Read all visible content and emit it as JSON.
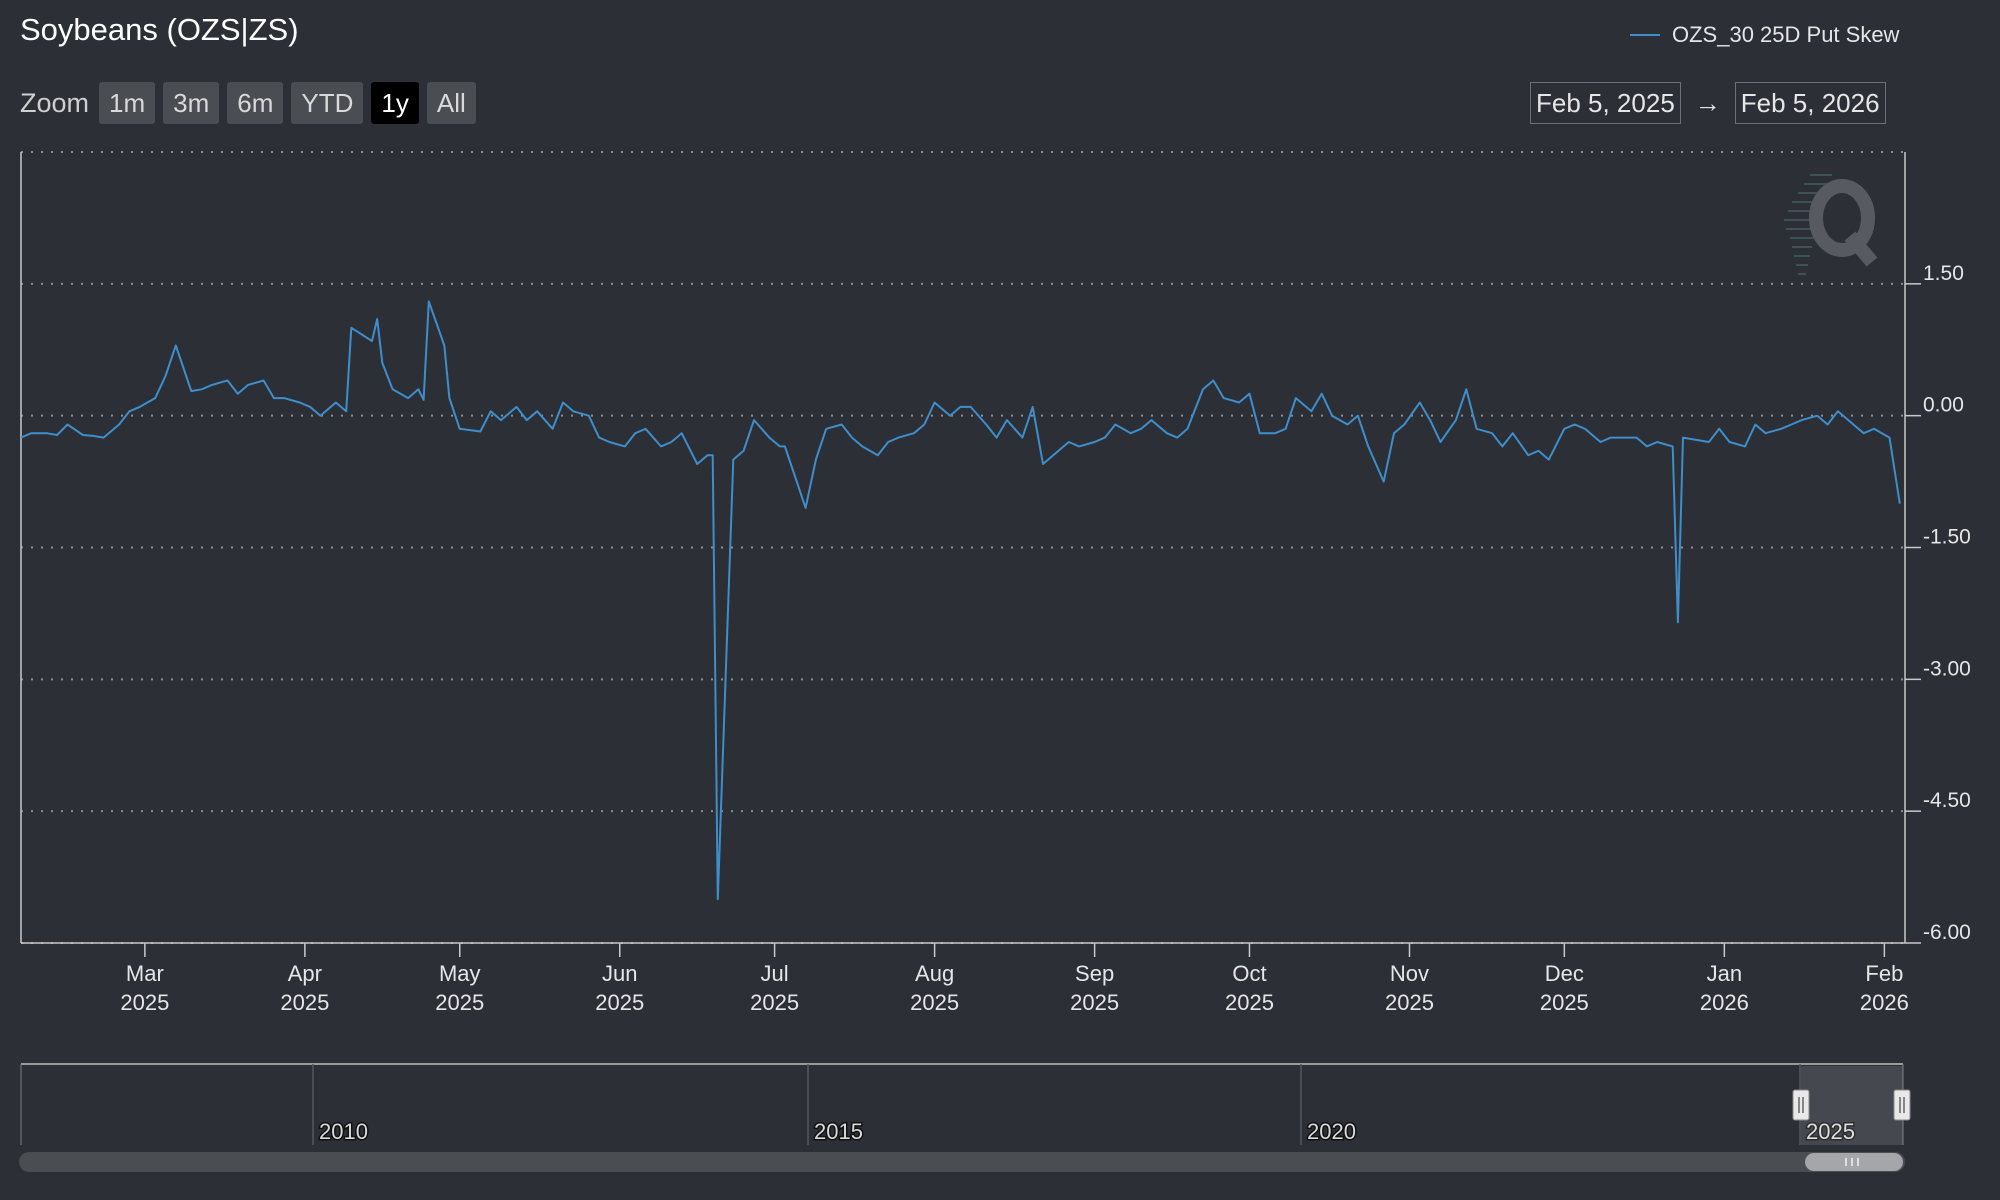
{
  "title": "Soybeans (OZS|ZS)",
  "legend_label": "OZS_30 25D Put Skew",
  "zoom": {
    "label": "Zoom",
    "buttons": [
      "1m",
      "3m",
      "6m",
      "YTD",
      "1y",
      "All"
    ],
    "active": "1y"
  },
  "range": {
    "from": "Feb 5, 2025",
    "arrow": "→",
    "to": "Feb 5, 2026"
  },
  "colors": {
    "background": "#2c2f36",
    "series": "#3e8ecb",
    "grid": "#8a8d92"
  },
  "navigator_labels": [
    "2010",
    "2015",
    "2020",
    "2025"
  ],
  "chart_data": {
    "type": "line",
    "x_range": [
      "2025-02-05",
      "2026-02-05"
    ],
    "ylim": [
      -6.0,
      3.0
    ],
    "grid": true,
    "legend_position": "top-right",
    "y_axis_position": "right",
    "yticks": [
      1.5,
      0.0,
      -1.5,
      -3.0,
      -4.5,
      -6.0
    ],
    "ytick_labels": [
      "1.50",
      "0.00",
      "-1.50",
      "-3.00",
      "-4.50",
      "-6.00"
    ],
    "xticks": [
      {
        "date": "2025-03-01",
        "label": "Mar",
        "year": "2025"
      },
      {
        "date": "2025-04-01",
        "label": "Apr",
        "year": "2025"
      },
      {
        "date": "2025-05-01",
        "label": "May",
        "year": "2025"
      },
      {
        "date": "2025-06-01",
        "label": "Jun",
        "year": "2025"
      },
      {
        "date": "2025-07-01",
        "label": "Jul",
        "year": "2025"
      },
      {
        "date": "2025-08-01",
        "label": "Aug",
        "year": "2025"
      },
      {
        "date": "2025-09-01",
        "label": "Sep",
        "year": "2025"
      },
      {
        "date": "2025-10-01",
        "label": "Oct",
        "year": "2025"
      },
      {
        "date": "2025-11-01",
        "label": "Nov",
        "year": "2025"
      },
      {
        "date": "2025-12-01",
        "label": "Dec",
        "year": "2025"
      },
      {
        "date": "2026-01-01",
        "label": "Jan",
        "year": "2026"
      },
      {
        "date": "2026-02-01",
        "label": "Feb",
        "year": "2026"
      }
    ],
    "series": [
      {
        "name": "OZS_30 25D Put Skew",
        "points": [
          [
            "2025-02-05",
            -0.25
          ],
          [
            "2025-02-07",
            -0.2
          ],
          [
            "2025-02-10",
            -0.2
          ],
          [
            "2025-02-12",
            -0.22
          ],
          [
            "2025-02-14",
            -0.1
          ],
          [
            "2025-02-17",
            -0.22
          ],
          [
            "2025-02-19",
            -0.23
          ],
          [
            "2025-02-21",
            -0.25
          ],
          [
            "2025-02-24",
            -0.1
          ],
          [
            "2025-02-26",
            0.05
          ],
          [
            "2025-02-28",
            0.1
          ],
          [
            "2025-03-03",
            0.2
          ],
          [
            "2025-03-05",
            0.45
          ],
          [
            "2025-03-07",
            0.8
          ],
          [
            "2025-03-10",
            0.28
          ],
          [
            "2025-03-12",
            0.3
          ],
          [
            "2025-03-14",
            0.35
          ],
          [
            "2025-03-17",
            0.4
          ],
          [
            "2025-03-19",
            0.25
          ],
          [
            "2025-03-21",
            0.35
          ],
          [
            "2025-03-24",
            0.4
          ],
          [
            "2025-03-26",
            0.2
          ],
          [
            "2025-03-28",
            0.2
          ],
          [
            "2025-03-31",
            0.15
          ],
          [
            "2025-04-02",
            0.1
          ],
          [
            "2025-04-04",
            0.0
          ],
          [
            "2025-04-07",
            0.15
          ],
          [
            "2025-04-09",
            0.05
          ],
          [
            "2025-04-10",
            1.0
          ],
          [
            "2025-04-14",
            0.85
          ],
          [
            "2025-04-15",
            1.1
          ],
          [
            "2025-04-16",
            0.6
          ],
          [
            "2025-04-18",
            0.3
          ],
          [
            "2025-04-21",
            0.2
          ],
          [
            "2025-04-23",
            0.3
          ],
          [
            "2025-04-24",
            0.18
          ],
          [
            "2025-04-25",
            1.3
          ],
          [
            "2025-04-28",
            0.8
          ],
          [
            "2025-04-29",
            0.2
          ],
          [
            "2025-05-01",
            -0.15
          ],
          [
            "2025-05-05",
            -0.18
          ],
          [
            "2025-05-07",
            0.05
          ],
          [
            "2025-05-09",
            -0.05
          ],
          [
            "2025-05-12",
            0.1
          ],
          [
            "2025-05-14",
            -0.05
          ],
          [
            "2025-05-16",
            0.05
          ],
          [
            "2025-05-19",
            -0.15
          ],
          [
            "2025-05-21",
            0.15
          ],
          [
            "2025-05-23",
            0.05
          ],
          [
            "2025-05-26",
            0.0
          ],
          [
            "2025-05-28",
            -0.25
          ],
          [
            "2025-05-30",
            -0.3
          ],
          [
            "2025-06-02",
            -0.35
          ],
          [
            "2025-06-04",
            -0.2
          ],
          [
            "2025-06-06",
            -0.15
          ],
          [
            "2025-06-09",
            -0.35
          ],
          [
            "2025-06-11",
            -0.3
          ],
          [
            "2025-06-13",
            -0.2
          ],
          [
            "2025-06-16",
            -0.55
          ],
          [
            "2025-06-18",
            -0.45
          ],
          [
            "2025-06-19",
            -0.45
          ],
          [
            "2025-06-20",
            -5.5
          ],
          [
            "2025-06-23",
            -0.5
          ],
          [
            "2025-06-25",
            -0.4
          ],
          [
            "2025-06-27",
            -0.05
          ],
          [
            "2025-06-30",
            -0.25
          ],
          [
            "2025-07-02",
            -0.35
          ],
          [
            "2025-07-03",
            -0.35
          ],
          [
            "2025-07-07",
            -1.05
          ],
          [
            "2025-07-09",
            -0.5
          ],
          [
            "2025-07-11",
            -0.15
          ],
          [
            "2025-07-14",
            -0.1
          ],
          [
            "2025-07-16",
            -0.25
          ],
          [
            "2025-07-18",
            -0.35
          ],
          [
            "2025-07-21",
            -0.45
          ],
          [
            "2025-07-23",
            -0.3
          ],
          [
            "2025-07-25",
            -0.25
          ],
          [
            "2025-07-28",
            -0.2
          ],
          [
            "2025-07-30",
            -0.1
          ],
          [
            "2025-08-01",
            0.15
          ],
          [
            "2025-08-04",
            0.0
          ],
          [
            "2025-08-06",
            0.1
          ],
          [
            "2025-08-08",
            0.1
          ],
          [
            "2025-08-11",
            -0.1
          ],
          [
            "2025-08-13",
            -0.25
          ],
          [
            "2025-08-15",
            -0.05
          ],
          [
            "2025-08-18",
            -0.25
          ],
          [
            "2025-08-20",
            0.1
          ],
          [
            "2025-08-22",
            -0.55
          ],
          [
            "2025-08-25",
            -0.4
          ],
          [
            "2025-08-27",
            -0.3
          ],
          [
            "2025-08-29",
            -0.35
          ],
          [
            "2025-09-01",
            -0.3
          ],
          [
            "2025-09-03",
            -0.25
          ],
          [
            "2025-09-05",
            -0.1
          ],
          [
            "2025-09-08",
            -0.2
          ],
          [
            "2025-09-10",
            -0.15
          ],
          [
            "2025-09-12",
            -0.05
          ],
          [
            "2025-09-15",
            -0.2
          ],
          [
            "2025-09-17",
            -0.25
          ],
          [
            "2025-09-19",
            -0.15
          ],
          [
            "2025-09-22",
            0.3
          ],
          [
            "2025-09-24",
            0.4
          ],
          [
            "2025-09-26",
            0.2
          ],
          [
            "2025-09-29",
            0.15
          ],
          [
            "2025-10-01",
            0.25
          ],
          [
            "2025-10-03",
            -0.2
          ],
          [
            "2025-10-06",
            -0.2
          ],
          [
            "2025-10-08",
            -0.15
          ],
          [
            "2025-10-10",
            0.2
          ],
          [
            "2025-10-13",
            0.05
          ],
          [
            "2025-10-15",
            0.25
          ],
          [
            "2025-10-17",
            0.0
          ],
          [
            "2025-10-20",
            -0.1
          ],
          [
            "2025-10-22",
            0.0
          ],
          [
            "2025-10-24",
            -0.35
          ],
          [
            "2025-10-27",
            -0.75
          ],
          [
            "2025-10-29",
            -0.2
          ],
          [
            "2025-10-31",
            -0.1
          ],
          [
            "2025-11-03",
            0.15
          ],
          [
            "2025-11-05",
            -0.05
          ],
          [
            "2025-11-07",
            -0.3
          ],
          [
            "2025-11-10",
            -0.05
          ],
          [
            "2025-11-12",
            0.3
          ],
          [
            "2025-11-14",
            -0.15
          ],
          [
            "2025-11-17",
            -0.2
          ],
          [
            "2025-11-19",
            -0.35
          ],
          [
            "2025-11-21",
            -0.2
          ],
          [
            "2025-11-24",
            -0.45
          ],
          [
            "2025-11-26",
            -0.4
          ],
          [
            "2025-11-28",
            -0.5
          ],
          [
            "2025-12-01",
            -0.15
          ],
          [
            "2025-12-03",
            -0.1
          ],
          [
            "2025-12-05",
            -0.15
          ],
          [
            "2025-12-08",
            -0.3
          ],
          [
            "2025-12-10",
            -0.25
          ],
          [
            "2025-12-12",
            -0.25
          ],
          [
            "2025-12-15",
            -0.25
          ],
          [
            "2025-12-17",
            -0.35
          ],
          [
            "2025-12-19",
            -0.3
          ],
          [
            "2025-12-22",
            -0.35
          ],
          [
            "2025-12-23",
            -2.35
          ],
          [
            "2025-12-24",
            -0.25
          ],
          [
            "2025-12-29",
            -0.3
          ],
          [
            "2025-12-31",
            -0.15
          ],
          [
            "2026-01-02",
            -0.3
          ],
          [
            "2026-01-05",
            -0.35
          ],
          [
            "2026-01-07",
            -0.1
          ],
          [
            "2026-01-09",
            -0.2
          ],
          [
            "2026-01-12",
            -0.15
          ],
          [
            "2026-01-14",
            -0.1
          ],
          [
            "2026-01-16",
            -0.05
          ],
          [
            "2026-01-19",
            0.0
          ],
          [
            "2026-01-21",
            -0.1
          ],
          [
            "2026-01-23",
            0.05
          ],
          [
            "2026-01-26",
            -0.1
          ],
          [
            "2026-01-28",
            -0.2
          ],
          [
            "2026-01-30",
            -0.15
          ],
          [
            "2026-02-02",
            -0.25
          ],
          [
            "2026-02-04",
            -1.0
          ]
        ]
      }
    ]
  }
}
